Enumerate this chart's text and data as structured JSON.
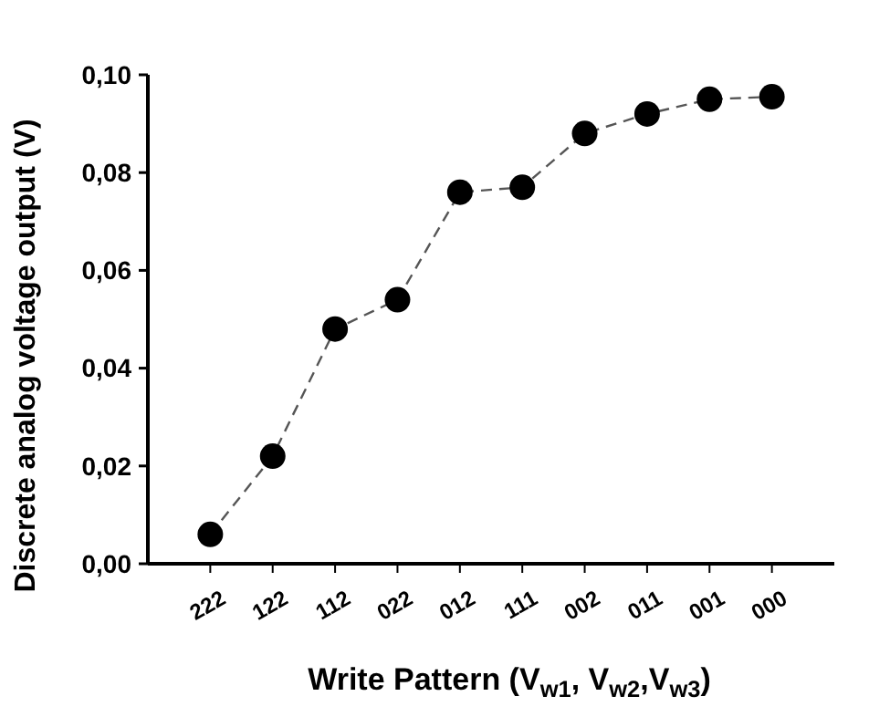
{
  "chart_data": {
    "type": "line",
    "xlabel": "Write Pattern (V$_{w1}$, V$_{w2}$,V$_{w3}$)",
    "ylabel": "Discrete analog voltage output (V)",
    "categories": [
      "222",
      "122",
      "112",
      "022",
      "012",
      "111",
      "002",
      "011",
      "001",
      "000"
    ],
    "series": [
      {
        "color": "#000000",
        "values": [
          0.006,
          0.022,
          0.048,
          0.054,
          0.076,
          0.077,
          0.088,
          0.092,
          0.095,
          0.0955
        ]
      }
    ],
    "ylim": [
      0,
      0.1
    ],
    "yticks": [
      {
        "value": 0,
        "label": "0,00"
      },
      {
        "value": 0.02,
        "label": "0,02"
      },
      {
        "value": 0.04,
        "label": "0,04"
      },
      {
        "value": 0.06,
        "label": "0,06"
      },
      {
        "value": 0.08,
        "label": "0,08"
      },
      {
        "value": 0.1,
        "label": "0,10"
      }
    ],
    "marker": "circle",
    "line_style": "dashed",
    "grid": false
  }
}
